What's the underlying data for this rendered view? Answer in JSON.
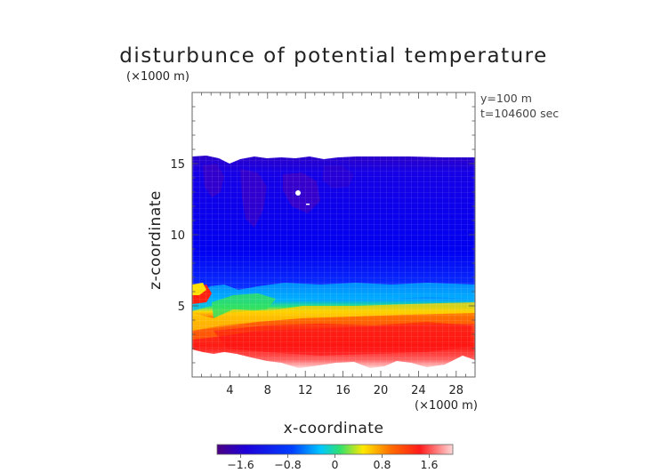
{
  "chart_data": {
    "type": "heatmap",
    "title": "disturbunce of potential temperature",
    "xlabel": "x-coordinate",
    "ylabel": "z-coordinate",
    "x_unit": "(×1000 m)",
    "y_unit": "(×1000 m)",
    "annotations": [
      "y=100 m",
      "t=104600 sec"
    ],
    "xlim": [
      0,
      30
    ],
    "ylim": [
      0,
      20
    ],
    "x_ticks": [
      4,
      8,
      12,
      16,
      20,
      24,
      28
    ],
    "y_ticks": [
      5,
      10,
      15
    ],
    "colorbar": {
      "range": [
        -2.0,
        2.0
      ],
      "ticks": [
        -1.6,
        -0.8,
        0,
        0.8,
        1.6
      ],
      "tick_labels": [
        "−1.6",
        "−0.8",
        "0",
        "0.8",
        "1.6"
      ],
      "colors": [
        "#4b0082",
        "#1e00d8",
        "#0040ff",
        "#00c8ff",
        "#30e070",
        "#ffe800",
        "#ff6a00",
        "#ff1a1a",
        "#ffd8d8"
      ]
    },
    "regions": {
      "upper_layer_value": -1.5,
      "lower_layer_value": 1.4,
      "transition_height": 5.8,
      "upper_layer_top": 15.5,
      "lower_layer_bottom": 2.0
    }
  }
}
